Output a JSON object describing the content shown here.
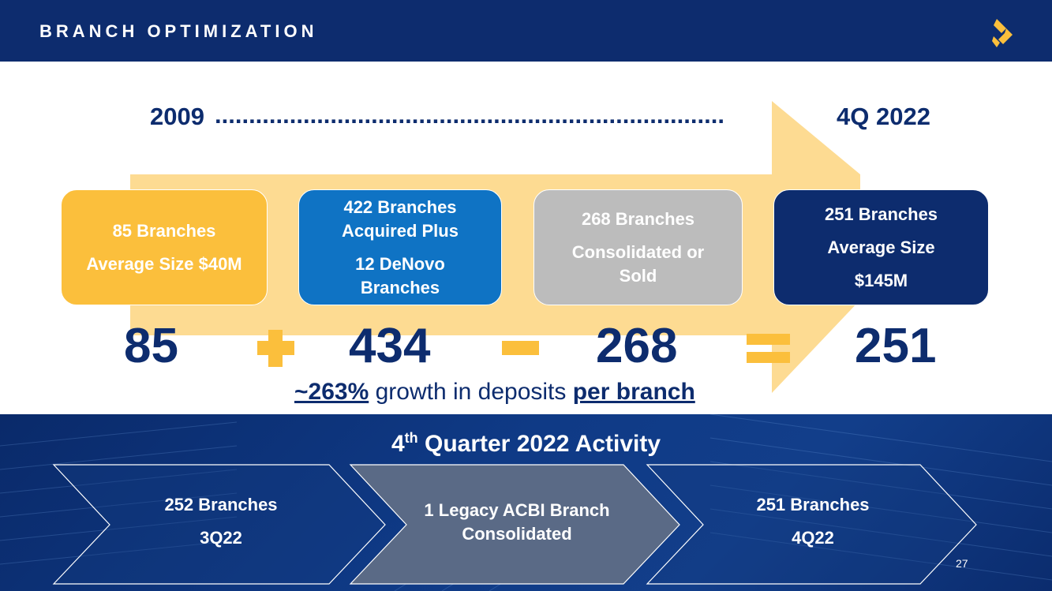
{
  "header": {
    "title": "BRANCH OPTIMIZATION"
  },
  "timeline": {
    "start": "2009",
    "dots": "...........................................................................",
    "end": "4Q 2022"
  },
  "boxes": [
    {
      "line1": "85 Branches",
      "line2": "Average Size $40M"
    },
    {
      "line1": "422 Branches Acquired Plus",
      "line2": "12 DeNovo Branches"
    },
    {
      "line1": "268 Branches",
      "line2": "Consolidated or Sold"
    },
    {
      "line1": "251 Branches",
      "line2": "Average Size",
      "line3": "$145M"
    }
  ],
  "equation": {
    "n1": "85",
    "n2": "434",
    "n3": "268",
    "n4": "251"
  },
  "growth": {
    "pct": "~263%",
    "middle": " growth in deposits ",
    "tail": "per branch"
  },
  "activity": {
    "title_pre": "4",
    "title_sup": "th",
    "title_post": " Quarter 2022 Activity",
    "steps": [
      {
        "line1": "252 Branches",
        "line2": "3Q22"
      },
      {
        "line1": "1 Legacy ACBI Branch Consolidated"
      },
      {
        "line1": "251 Branches",
        "line2": "4Q22"
      }
    ]
  },
  "page_number": "27",
  "colors": {
    "navy": "#0d2c6e",
    "gold": "#fbbf3c",
    "blue": "#0f73c4",
    "gray": "#bcbcbc",
    "arrow": "#fddb92"
  }
}
